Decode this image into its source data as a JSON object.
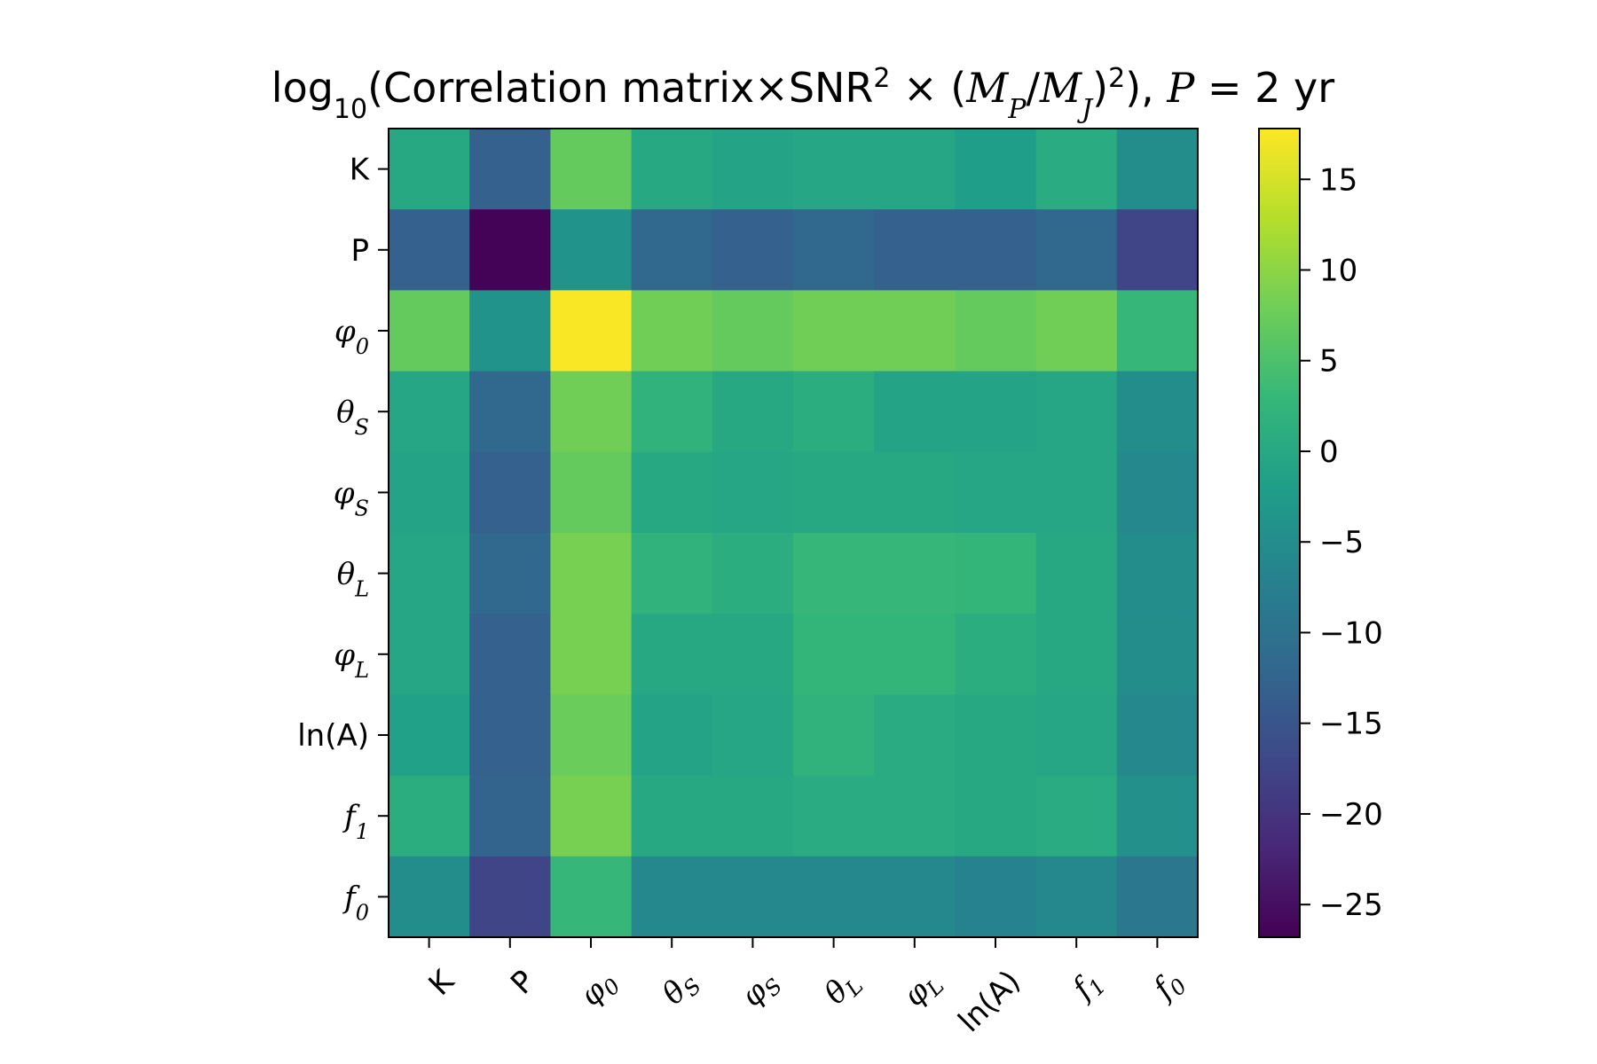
{
  "chart_data": {
    "type": "heatmap",
    "title": {
      "prefix": "log",
      "prefix_sub": "10",
      "main": "(Correlation matrix×SNR",
      "main_sup": "2",
      "times": " × (",
      "mp": "M",
      "mp_sub": "P",
      "slash": "/",
      "mj": "M",
      "mj_sub": "J",
      "close": ")",
      "close_sup": "2",
      "tail": "), ",
      "p_var": "P",
      "p_value": " = 2 yr"
    },
    "x_categories": [
      "K",
      "P",
      "φ0",
      "θS",
      "φS",
      "θL",
      "φL",
      "ln(A)",
      "f1",
      "f0"
    ],
    "y_categories": [
      "K",
      "P",
      "φ0",
      "θS",
      "φS",
      "θL",
      "φL",
      "ln(A)",
      "f1",
      "f0"
    ],
    "tick_labels": [
      {
        "main": "K",
        "sub": "",
        "italic": false
      },
      {
        "main": "P",
        "sub": "",
        "italic": false
      },
      {
        "main": "φ",
        "sub": "0",
        "italic": true
      },
      {
        "main": "θ",
        "sub": "S",
        "italic": true
      },
      {
        "main": "φ",
        "sub": "S",
        "italic": true
      },
      {
        "main": "θ",
        "sub": "L",
        "italic": true
      },
      {
        "main": "φ",
        "sub": "L",
        "italic": true
      },
      {
        "main": "ln(A)",
        "sub": "",
        "italic": false
      },
      {
        "main": "f",
        "sub": "1",
        "italic": true
      },
      {
        "main": "f",
        "sub": "0",
        "italic": true
      }
    ],
    "values": [
      [
        0,
        -13,
        7,
        0,
        -1,
        -0.5,
        -0.5,
        -2,
        0.5,
        -5
      ],
      [
        -13,
        -26.5,
        -4,
        -12,
        -13,
        -12,
        -13,
        -13,
        -12,
        -17.5
      ],
      [
        7,
        -4,
        17.5,
        8,
        7,
        8,
        8,
        7,
        8,
        3
      ],
      [
        -0.5,
        -12,
        8,
        2,
        0,
        1,
        -1,
        -1,
        -0.5,
        -5
      ],
      [
        -1,
        -13,
        7,
        0,
        -0.5,
        0,
        0,
        -0.5,
        -0.5,
        -6
      ],
      [
        -0.5,
        -12,
        8.5,
        2,
        1,
        3,
        3,
        2.5,
        0,
        -5
      ],
      [
        -0.5,
        -13,
        8.5,
        0,
        0,
        2.5,
        2.5,
        1,
        0,
        -5
      ],
      [
        -1.5,
        -13,
        7.5,
        -1,
        -0.5,
        2,
        0.5,
        0,
        -0.5,
        -6
      ],
      [
        1,
        -12.5,
        8.5,
        0,
        0,
        0.5,
        0.5,
        0,
        0.5,
        -4.5
      ],
      [
        -5,
        -17.5,
        3,
        -6,
        -6,
        -6,
        -6,
        -7,
        -6,
        -9
      ]
    ],
    "colorbar": {
      "min": -26.8,
      "max": 17.8,
      "ticks": [
        15,
        10,
        5,
        0,
        -5,
        -10,
        -15,
        -20,
        -25
      ],
      "tick_labels": [
        "15",
        "10",
        "5",
        "0",
        "−5",
        "−10",
        "−15",
        "−20",
        "−25"
      ]
    },
    "colormap": "viridis",
    "colormap_stops": [
      "#440154",
      "#482878",
      "#3e4989",
      "#31688e",
      "#26828e",
      "#1f9e89",
      "#35b779",
      "#6ece58",
      "#b5de2b",
      "#fde725"
    ]
  }
}
